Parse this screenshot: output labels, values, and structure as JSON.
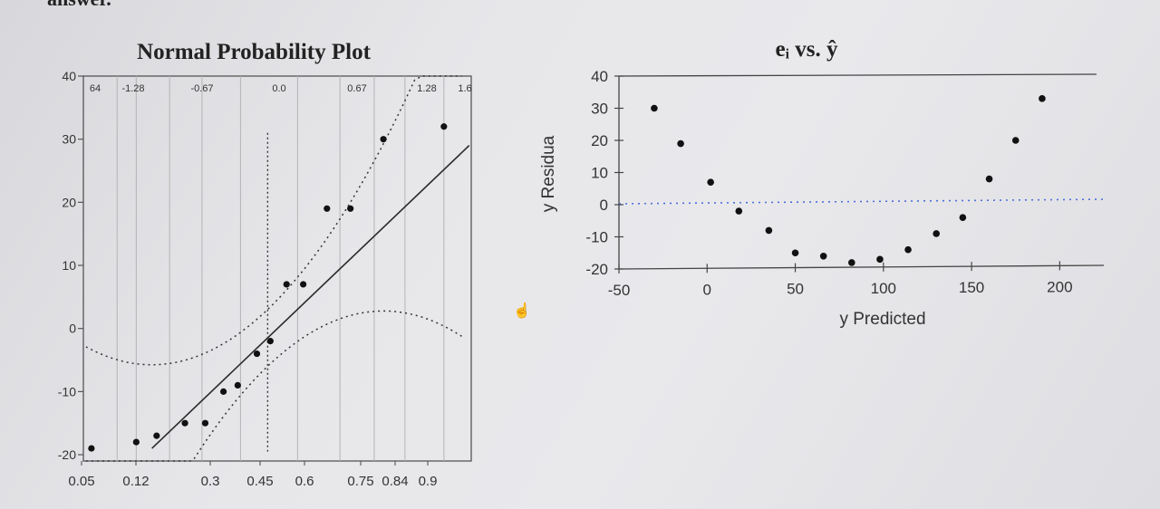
{
  "page_fragment": "answer.",
  "colors": {
    "point": "#111111",
    "fit_line": "#2a2a2a",
    "grid": "#b4b4b4",
    "frame": "#555555",
    "zero_line": "#4c6fd8"
  },
  "chart_data": [
    {
      "type": "scatter",
      "title": "Normal Probability Plot",
      "xlabel": "",
      "ylabel": "",
      "x_tick_labels": [
        "0.05",
        "0.12",
        "0.3",
        "0.45",
        "0.6",
        "0.75",
        "0.84",
        "0.9"
      ],
      "top_tick_labels": [
        "64",
        "-1.28",
        "-0.67",
        "0.0",
        "0.67",
        "1.28",
        "1.6"
      ],
      "y_ticks": [
        40,
        30,
        20,
        10,
        0,
        -10,
        -20
      ],
      "ylim": [
        -21,
        40
      ],
      "grid": "vertical",
      "points": [
        {
          "p": 0.05,
          "y": -19
        },
        {
          "p": 0.11,
          "y": -18
        },
        {
          "p": 0.15,
          "y": -17
        },
        {
          "p": 0.22,
          "y": -15
        },
        {
          "p": 0.28,
          "y": -15
        },
        {
          "p": 0.34,
          "y": -10
        },
        {
          "p": 0.39,
          "y": -9
        },
        {
          "p": 0.46,
          "y": -4
        },
        {
          "p": 0.51,
          "y": -2
        },
        {
          "p": 0.57,
          "y": 7
        },
        {
          "p": 0.63,
          "y": 7
        },
        {
          "p": 0.71,
          "y": 19
        },
        {
          "p": 0.78,
          "y": 19
        },
        {
          "p": 0.86,
          "y": 30
        },
        {
          "p": 0.95,
          "y": 32
        }
      ],
      "fit_line": {
        "p_start": 0.14,
        "y_start": -19,
        "p_end": 0.97,
        "y_end": 29
      },
      "confidence_band": "dotted",
      "median_reference": "dotted vertical"
    },
    {
      "type": "scatter",
      "title": "eᵢ vs. ŷ",
      "xlabel": "y Predicted",
      "ylabel": "y Residua",
      "xlim": [
        -50,
        225
      ],
      "ylim": [
        -20,
        40
      ],
      "x_ticks": [
        -50,
        0,
        50,
        100,
        150,
        200
      ],
      "y_ticks": [
        40,
        30,
        20,
        10,
        0,
        -10,
        -20
      ],
      "reference_line_y": 0,
      "points": [
        {
          "x": -30,
          "y": 30
        },
        {
          "x": -15,
          "y": 19
        },
        {
          "x": 2,
          "y": 7
        },
        {
          "x": 18,
          "y": -2
        },
        {
          "x": 35,
          "y": -8
        },
        {
          "x": 50,
          "y": -15
        },
        {
          "x": 66,
          "y": -16
        },
        {
          "x": 82,
          "y": -18
        },
        {
          "x": 98,
          "y": -17
        },
        {
          "x": 114,
          "y": -14
        },
        {
          "x": 130,
          "y": -9
        },
        {
          "x": 145,
          "y": -4
        },
        {
          "x": 160,
          "y": 8
        },
        {
          "x": 175,
          "y": 20
        },
        {
          "x": 190,
          "y": 33
        }
      ]
    }
  ]
}
